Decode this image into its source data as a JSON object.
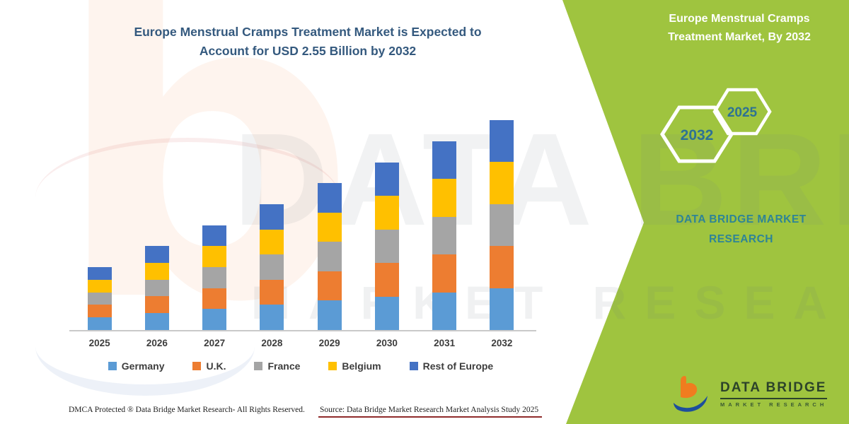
{
  "chart": {
    "title_line1": "Europe Menstrual Cramps Treatment Market is Expected to",
    "title_line2": "Account for USD 2.55 Billion by 2032",
    "title_color": "#34597e"
  },
  "chart_data": {
    "type": "bar",
    "stacked": true,
    "title": "Europe Menstrual Cramps Treatment Market is Expected to Account for USD 2.55 Billion by 2032",
    "unit": "USD Billion",
    "categories": [
      "2025",
      "2026",
      "2027",
      "2028",
      "2029",
      "2030",
      "2031",
      "2032"
    ],
    "series": [
      {
        "name": "Germany",
        "color": "#5B9BD5",
        "values": [
          0.153,
          0.204,
          0.255,
          0.306,
          0.357,
          0.408,
          0.459,
          0.51
        ]
      },
      {
        "name": "U.K.",
        "color": "#ED7D31",
        "values": [
          0.153,
          0.204,
          0.255,
          0.306,
          0.357,
          0.408,
          0.459,
          0.51
        ]
      },
      {
        "name": "France",
        "color": "#A5A5A5",
        "values": [
          0.153,
          0.204,
          0.255,
          0.306,
          0.357,
          0.408,
          0.459,
          0.51
        ]
      },
      {
        "name": "Belgium",
        "color": "#FFC000",
        "values": [
          0.153,
          0.204,
          0.255,
          0.306,
          0.357,
          0.408,
          0.459,
          0.51
        ]
      },
      {
        "name": "Rest of Europe",
        "color": "#4472C4",
        "values": [
          0.153,
          0.204,
          0.255,
          0.306,
          0.357,
          0.408,
          0.459,
          0.51
        ]
      }
    ],
    "totals": [
      0.765,
      1.02,
      1.275,
      1.53,
      1.785,
      2.04,
      2.295,
      2.55
    ],
    "ylim": [
      0,
      2.8
    ],
    "grid": false,
    "y_axis_shown": false,
    "legend_position": "bottom"
  },
  "side_panel": {
    "title_line1": "Europe Menstrual Cramps",
    "title_line2": "Treatment Market, By 2032",
    "hexagon_large_label": "2032",
    "hexagon_small_label": "2025",
    "brand_line1": "DATA BRIDGE MARKET",
    "brand_line2": "RESEARCH",
    "logo_title": "DATA BRIDGE",
    "logo_subtitle": "MARKET RESEARCH",
    "background_color": "#9fc43f"
  },
  "footer": {
    "dmca": "DMCA Protected ® Data Bridge Market Research- All Rights Reserved.",
    "source": "Source: Data Bridge Market Research Market Analysis Study 2025"
  },
  "watermark": {
    "big_text": "DATA BRIDGE",
    "mid_text": "MARKET RESEARCH",
    "letter_b": "b"
  }
}
